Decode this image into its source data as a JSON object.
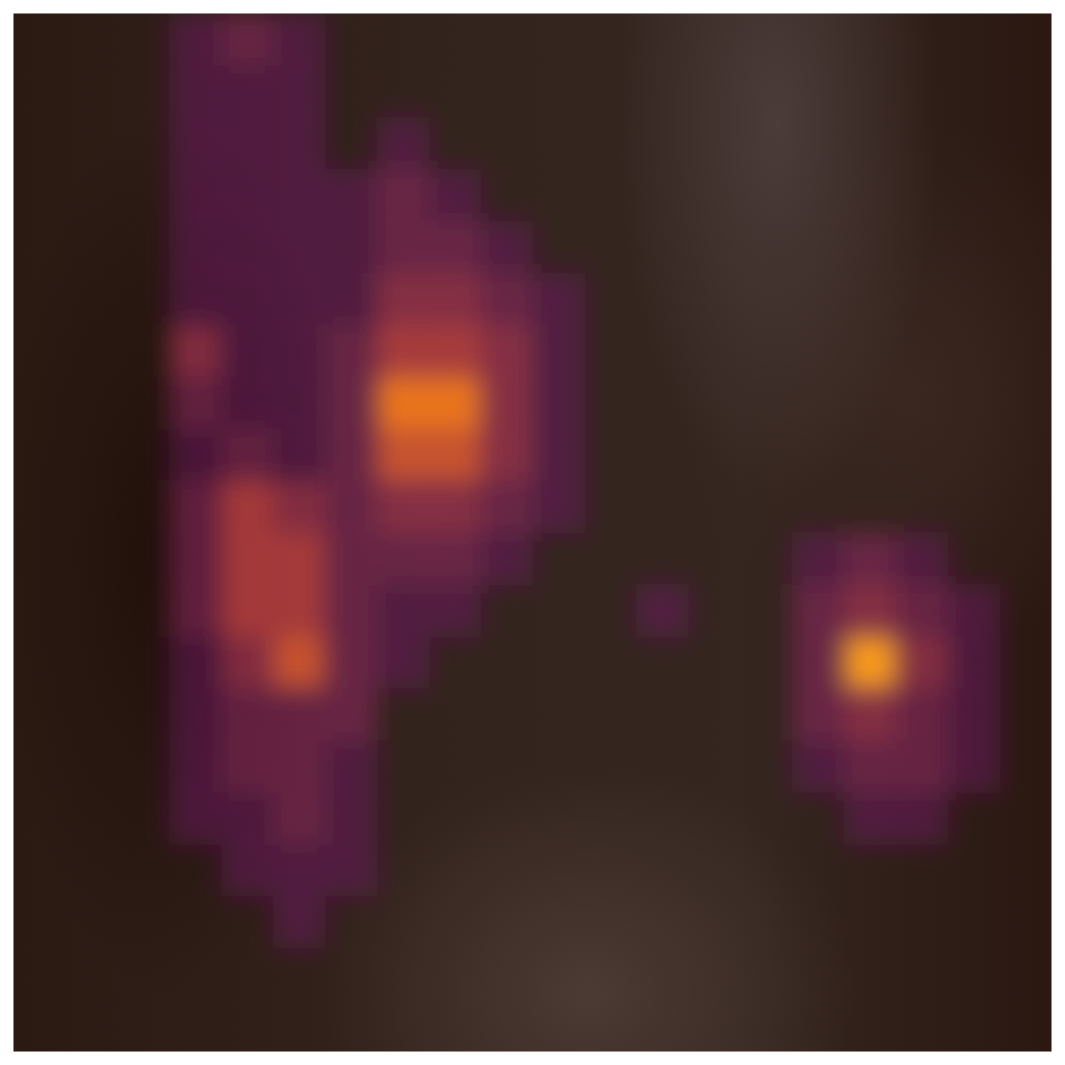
{
  "chart_data": {
    "type": "heatmap",
    "tick_labels": false,
    "color": "inferno",
    "zlim": [
      0,
      10
    ],
    "cells": [
      [
        0,
        0,
        0,
        1,
        2,
        1,
        0,
        0,
        0,
        0,
        0,
        0,
        0,
        0,
        0,
        0,
        0,
        0,
        0,
        0
      ],
      [
        0,
        0,
        0,
        1,
        1,
        1,
        0,
        0,
        0,
        0,
        0,
        0,
        0,
        0,
        0,
        0,
        0,
        0,
        0,
        0
      ],
      [
        0,
        0,
        0,
        1,
        1,
        1,
        0,
        1,
        0,
        0,
        0,
        0,
        0,
        0,
        0,
        0,
        0,
        0,
        0,
        0
      ],
      [
        0,
        0,
        0,
        1,
        1,
        1,
        1,
        2,
        1,
        0,
        0,
        0,
        0,
        0,
        0,
        0,
        0,
        0,
        0,
        0
      ],
      [
        0,
        0,
        0,
        1,
        1,
        1,
        1,
        2,
        2,
        1,
        0,
        0,
        0,
        0,
        0,
        0,
        0,
        0,
        0,
        0
      ],
      [
        0,
        0,
        0,
        1,
        1,
        1,
        1,
        3,
        3,
        2,
        1,
        0,
        0,
        0,
        0,
        0,
        0,
        0,
        0,
        0
      ],
      [
        0,
        0,
        0,
        3,
        1,
        1,
        2,
        4,
        4,
        3,
        1,
        0,
        0,
        0,
        0,
        0,
        0,
        0,
        0,
        0
      ],
      [
        0,
        0,
        0,
        2,
        1,
        1,
        2,
        6,
        6,
        3,
        1,
        0,
        0,
        0,
        0,
        0,
        0,
        0,
        0,
        0
      ],
      [
        0,
        0,
        0,
        1,
        2,
        1,
        2,
        5,
        5,
        3,
        1,
        0,
        0,
        0,
        0,
        0,
        0,
        0,
        0,
        0
      ],
      [
        0,
        0,
        0,
        2,
        4,
        3,
        2,
        3,
        3,
        2,
        1,
        0,
        0,
        0,
        0,
        0,
        0,
        0,
        0,
        0
      ],
      [
        0,
        0,
        0,
        2,
        4,
        4,
        2,
        2,
        2,
        1,
        0,
        0,
        0,
        0,
        0,
        1,
        2,
        1,
        0,
        0
      ],
      [
        0,
        0,
        0,
        2,
        4,
        4,
        2,
        1,
        1,
        0,
        0,
        0,
        1,
        0,
        0,
        2,
        3,
        2,
        1,
        0
      ],
      [
        0,
        0,
        0,
        1,
        3,
        5,
        2,
        1,
        0,
        0,
        0,
        0,
        0,
        0,
        0,
        2,
        7,
        3,
        1,
        0
      ],
      [
        0,
        0,
        0,
        1,
        2,
        2,
        2,
        0,
        0,
        0,
        0,
        0,
        0,
        0,
        0,
        2,
        3,
        2,
        1,
        0
      ],
      [
        0,
        0,
        0,
        1,
        2,
        2,
        1,
        0,
        0,
        0,
        0,
        0,
        0,
        0,
        0,
        1,
        2,
        2,
        1,
        0
      ],
      [
        0,
        0,
        0,
        1,
        1,
        2,
        1,
        0,
        0,
        0,
        0,
        0,
        0,
        0,
        0,
        0,
        1,
        1,
        0,
        0
      ],
      [
        0,
        0,
        0,
        0,
        1,
        1,
        1,
        0,
        0,
        0,
        0,
        0,
        0,
        0,
        0,
        0,
        0,
        0,
        0,
        0
      ],
      [
        0,
        0,
        0,
        0,
        0,
        1,
        0,
        0,
        0,
        0,
        0,
        0,
        0,
        0,
        0,
        0,
        0,
        0,
        0,
        0
      ],
      [
        0,
        0,
        0,
        0,
        0,
        0,
        0,
        0,
        0,
        0,
        0,
        0,
        0,
        0,
        0,
        0,
        0,
        0,
        0,
        0
      ],
      [
        0,
        0,
        0,
        0,
        0,
        0,
        0,
        0,
        0,
        0,
        0,
        0,
        0,
        0,
        0,
        0,
        0,
        0,
        0,
        0
      ]
    ]
  }
}
